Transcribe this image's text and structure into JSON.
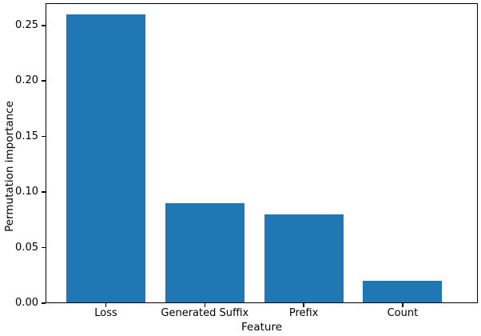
{
  "figure": {
    "background": "#ffffff"
  },
  "chart_data": {
    "type": "bar",
    "categories": [
      "Loss",
      "Generated Suffix",
      "Prefix",
      "Count"
    ],
    "values": [
      0.26,
      0.09,
      0.08,
      0.02
    ],
    "xlabel": "Feature",
    "ylabel": "Permutation importance",
    "xlim": [
      -0.61,
      3.76
    ],
    "ylim": [
      0,
      0.27
    ],
    "yticks": [
      0,
      0.05,
      0.1,
      0.15,
      0.2,
      0.25
    ],
    "ytick_labels": [
      "0.00",
      "0.05",
      "0.10",
      "0.15",
      "0.20",
      "0.25"
    ],
    "bar_width": 0.8,
    "bar_color": "#1f77b4",
    "axis_color": "#000000",
    "text_color": "#000000",
    "grid": false,
    "legend": "none"
  }
}
